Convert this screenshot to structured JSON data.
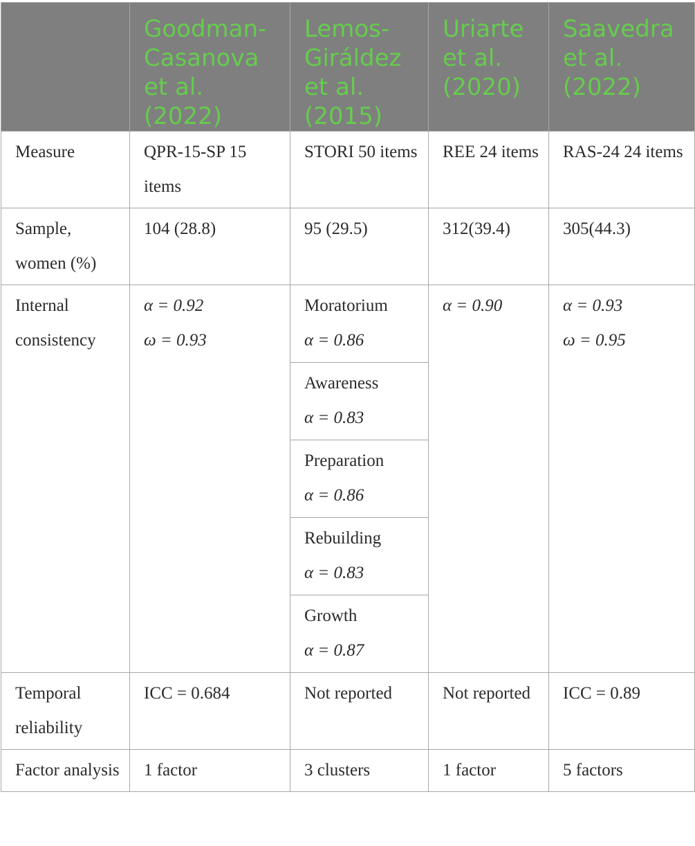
{
  "header": {
    "columns": [
      "",
      "Goodman-Casanova et al. (2022)",
      "Lemos-Giráldez et al. (2015)",
      "Uriarte et al. (2020)",
      "Saavedra et al. (2022)"
    ],
    "header_text_color": "#66cc4e",
    "header_bg_color": "#7f7f7f"
  },
  "rows": {
    "measure": {
      "label": "Measure",
      "goodman": "QPR-15-SP 15 items",
      "lemos": "STORI 50 items",
      "uriarte": "REE 24 items",
      "saavedra": "RAS-24 24 items"
    },
    "sample": {
      "label": "Sample, women (%)",
      "goodman": "104 (28.8)",
      "lemos": "95 (29.5)",
      "uriarte": "312(39.4)",
      "saavedra": "305(44.3)"
    },
    "internal": {
      "label": "Internal consistency",
      "goodman_alpha": "α = 0.92",
      "goodman_omega": "ω = 0.93",
      "lemos_sub": [
        {
          "name": "Moratorium",
          "value": "α = 0.86"
        },
        {
          "name": "Awareness",
          "value": "α = 0.83"
        },
        {
          "name": "Preparation",
          "value": "α = 0.86"
        },
        {
          "name": "Rebuilding",
          "value": "α = 0.83"
        },
        {
          "name": "Growth",
          "value": "α = 0.87"
        }
      ],
      "uriarte_alpha": "α = 0.90",
      "saavedra_alpha": "α = 0.93",
      "saavedra_omega": "ω = 0.95"
    },
    "temporal": {
      "label": "Temporal reliability",
      "goodman": "ICC = 0.684",
      "lemos": "Not reported",
      "uriarte": "Not reported",
      "saavedra": "ICC = 0.89"
    },
    "factor": {
      "label": "Factor analysis",
      "goodman": "1 factor",
      "lemos": "3 clusters",
      "uriarte": "1 factor",
      "saavedra": "5 factors"
    }
  }
}
